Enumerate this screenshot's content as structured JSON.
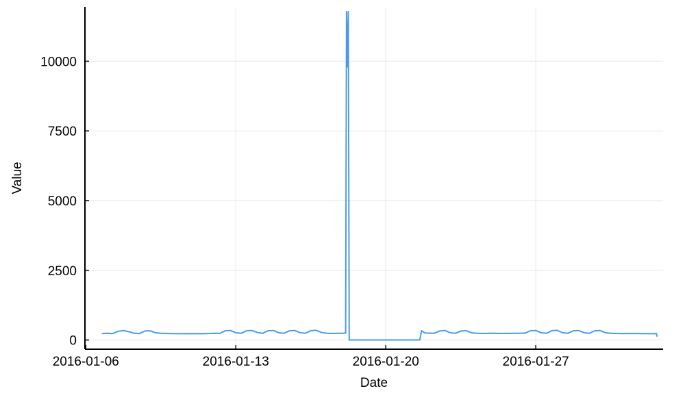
{
  "chart_data": {
    "type": "line",
    "title": "",
    "xlabel": "Date",
    "ylabel": "Value",
    "x_axis_type": "date",
    "xlim": [
      "2016-01-05T23:00",
      "2016-02-01T22:30"
    ],
    "ylim": [
      -330,
      11950
    ],
    "grid": true,
    "legend": "none",
    "line_color": "#4a9be5",
    "x_ticks": [
      {
        "value": "2016-01-06",
        "label": "2016-01-06"
      },
      {
        "value": "2016-01-13",
        "label": "2016-01-13"
      },
      {
        "value": "2016-01-20",
        "label": "2016-01-20"
      },
      {
        "value": "2016-01-27",
        "label": "2016-01-27"
      }
    ],
    "y_ticks": [
      {
        "value": 0,
        "label": "0"
      },
      {
        "value": 2500,
        "label": "2500"
      },
      {
        "value": 5000,
        "label": "5000"
      },
      {
        "value": 7500,
        "label": "7500"
      },
      {
        "value": 10000,
        "label": "10000"
      }
    ],
    "series": [
      {
        "points": [
          [
            "2016-01-06T18:00",
            230
          ],
          [
            "2016-01-07T00:00",
            240
          ],
          [
            "2016-01-07T06:00",
            230
          ],
          [
            "2016-01-07T12:00",
            310
          ],
          [
            "2016-01-07T18:00",
            340
          ],
          [
            "2016-01-08T00:00",
            300
          ],
          [
            "2016-01-08T06:00",
            240
          ],
          [
            "2016-01-08T12:00",
            230
          ],
          [
            "2016-01-08T18:00",
            320
          ],
          [
            "2016-01-09T00:00",
            330
          ],
          [
            "2016-01-09T06:00",
            260
          ],
          [
            "2016-01-09T12:00",
            240
          ],
          [
            "2016-01-10T00:00",
            230
          ],
          [
            "2016-01-10T12:00",
            225
          ],
          [
            "2016-01-11T00:00",
            230
          ],
          [
            "2016-01-11T12:00",
            225
          ],
          [
            "2016-01-12T00:00",
            240
          ],
          [
            "2016-01-12T06:00",
            235
          ],
          [
            "2016-01-12T12:00",
            330
          ],
          [
            "2016-01-12T18:00",
            340
          ],
          [
            "2016-01-13T00:00",
            260
          ],
          [
            "2016-01-13T06:00",
            240
          ],
          [
            "2016-01-13T12:00",
            330
          ],
          [
            "2016-01-13T18:00",
            340
          ],
          [
            "2016-01-14T00:00",
            270
          ],
          [
            "2016-01-14T06:00",
            240
          ],
          [
            "2016-01-14T12:00",
            330
          ],
          [
            "2016-01-14T18:00",
            340
          ],
          [
            "2016-01-15T00:00",
            260
          ],
          [
            "2016-01-15T06:00",
            240
          ],
          [
            "2016-01-15T12:00",
            330
          ],
          [
            "2016-01-15T18:00",
            340
          ],
          [
            "2016-01-16T00:00",
            260
          ],
          [
            "2016-01-16T06:00",
            240
          ],
          [
            "2016-01-16T12:00",
            335
          ],
          [
            "2016-01-16T18:00",
            345
          ],
          [
            "2016-01-17T00:00",
            270
          ],
          [
            "2016-01-17T06:00",
            240
          ],
          [
            "2016-01-17T12:00",
            235
          ],
          [
            "2016-01-17T18:00",
            240
          ],
          [
            "2016-01-18T00:00",
            240
          ],
          [
            "2016-01-18T03:00",
            250
          ],
          [
            "2016-01-18T04:00",
            11780
          ],
          [
            "2016-01-18T05:00",
            9800
          ],
          [
            "2016-01-18T06:00",
            11780
          ],
          [
            "2016-01-18T07:00",
            0
          ],
          [
            "2016-01-18T12:00",
            0
          ],
          [
            "2016-01-19T00:00",
            0
          ],
          [
            "2016-01-20T00:00",
            0
          ],
          [
            "2016-01-21T00:00",
            0
          ],
          [
            "2016-01-21T12:00",
            0
          ],
          [
            "2016-01-21T14:00",
            0
          ],
          [
            "2016-01-21T16:00",
            330
          ],
          [
            "2016-01-21T20:00",
            250
          ],
          [
            "2016-01-22T06:00",
            240
          ],
          [
            "2016-01-22T12:00",
            320
          ],
          [
            "2016-01-22T18:00",
            340
          ],
          [
            "2016-01-23T00:00",
            260
          ],
          [
            "2016-01-23T06:00",
            240
          ],
          [
            "2016-01-23T12:00",
            320
          ],
          [
            "2016-01-23T18:00",
            335
          ],
          [
            "2016-01-24T00:00",
            260
          ],
          [
            "2016-01-24T06:00",
            240
          ],
          [
            "2016-01-24T12:00",
            235
          ],
          [
            "2016-01-25T00:00",
            240
          ],
          [
            "2016-01-25T12:00",
            235
          ],
          [
            "2016-01-26T00:00",
            240
          ],
          [
            "2016-01-26T12:00",
            245
          ],
          [
            "2016-01-26T18:00",
            330
          ],
          [
            "2016-01-27T00:00",
            340
          ],
          [
            "2016-01-27T06:00",
            260
          ],
          [
            "2016-01-27T12:00",
            240
          ],
          [
            "2016-01-27T18:00",
            335
          ],
          [
            "2016-01-28T00:00",
            345
          ],
          [
            "2016-01-28T06:00",
            260
          ],
          [
            "2016-01-28T12:00",
            240
          ],
          [
            "2016-01-28T18:00",
            330
          ],
          [
            "2016-01-29T00:00",
            340
          ],
          [
            "2016-01-29T06:00",
            260
          ],
          [
            "2016-01-29T12:00",
            240
          ],
          [
            "2016-01-29T18:00",
            330
          ],
          [
            "2016-01-30T00:00",
            340
          ],
          [
            "2016-01-30T06:00",
            260
          ],
          [
            "2016-01-30T12:00",
            240
          ],
          [
            "2016-01-31T00:00",
            230
          ],
          [
            "2016-01-31T12:00",
            235
          ],
          [
            "2016-02-01T00:00",
            230
          ],
          [
            "2016-02-01T12:00",
            225
          ],
          [
            "2016-02-01T15:00",
            230
          ],
          [
            "2016-02-01T16:00",
            120
          ]
        ]
      }
    ]
  }
}
